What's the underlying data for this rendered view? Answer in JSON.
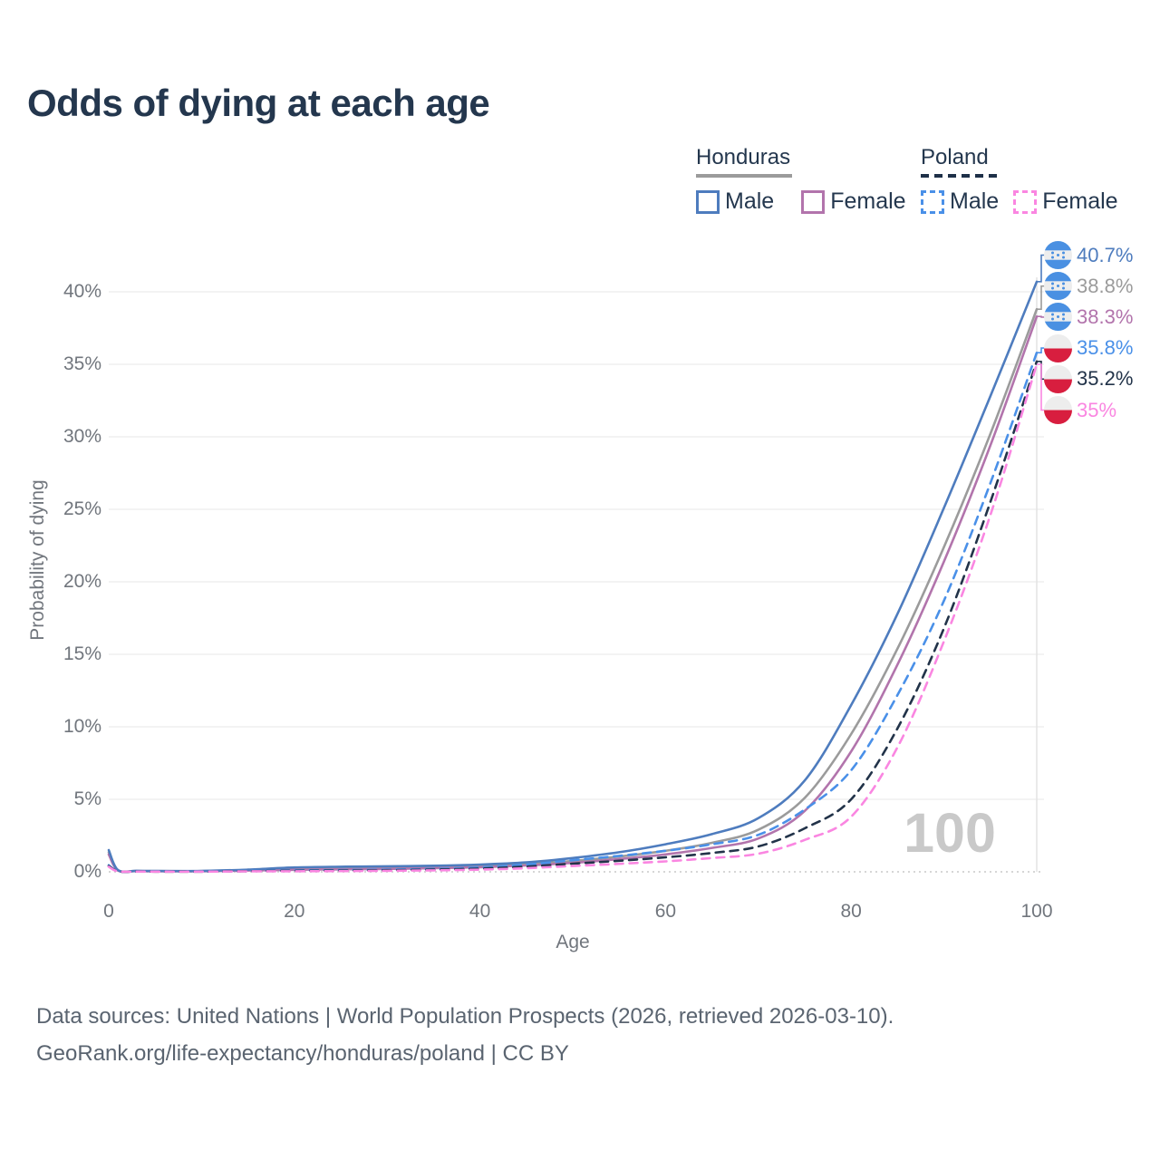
{
  "title": "Odds of dying at each age",
  "legend": {
    "honduras": {
      "label": "Honduras",
      "line_style": "solid",
      "underline_color": "#9b9b9b",
      "male_label": "Male",
      "male_color": "#4e7cbe",
      "female_label": "Female",
      "female_color": "#b274ac"
    },
    "poland": {
      "label": "Poland",
      "line_style": "dashed",
      "underline_color": "#1e3048",
      "male_label": "Male",
      "male_color": "#4a90e8",
      "female_label": "Female",
      "female_color": "#fa86e1"
    }
  },
  "y_axis": {
    "title": "Probability of dying",
    "ticks": [
      "0%",
      "5%",
      "10%",
      "15%",
      "20%",
      "25%",
      "30%",
      "35%",
      "40%"
    ],
    "tick_values": [
      0,
      5,
      10,
      15,
      20,
      25,
      30,
      35,
      40
    ]
  },
  "x_axis": {
    "title": "Age",
    "ticks": [
      "0",
      "20",
      "40",
      "60",
      "80",
      "100"
    ],
    "tick_values": [
      0,
      20,
      40,
      60,
      80,
      100
    ]
  },
  "hover": {
    "age_label": "100"
  },
  "end_labels": [
    {
      "value": "40.7%",
      "color": "#4e7cbe",
      "flag": "honduras",
      "series": "Honduras Male"
    },
    {
      "value": "38.8%",
      "color": "#9b9b9b",
      "flag": "honduras",
      "series": "Honduras Both sexes"
    },
    {
      "value": "38.3%",
      "color": "#b274ac",
      "flag": "honduras",
      "series": "Honduras Female"
    },
    {
      "value": "35.8%",
      "color": "#4a90e8",
      "flag": "poland",
      "series": "Poland Male"
    },
    {
      "value": "35.2%",
      "color": "#223349",
      "flag": "poland",
      "series": "Poland Both sexes"
    },
    {
      "value": "35%",
      "color": "#fa86e1",
      "flag": "poland",
      "series": "Poland Female"
    }
  ],
  "flag_colors": {
    "honduras_blue": "#4a90e2",
    "poland_red": "#d81e3f",
    "flag_white": "#ededed"
  },
  "footer": {
    "line1": "Data sources: United Nations | World Population Prospects (2026, retrieved 2026-03-10).",
    "line2": "GeoRank.org/life-expectancy/honduras/poland | CC BY"
  },
  "chart_data": {
    "type": "line",
    "title": "Odds of dying at each age",
    "xlabel": "Age",
    "ylabel": "Probability of dying",
    "xlim": [
      0,
      100
    ],
    "ylim_pct": [
      0,
      43
    ],
    "grid": "horizontal",
    "legend_position": "top-right",
    "hovered_age": 100,
    "x": [
      0,
      1,
      3,
      5,
      10,
      15,
      20,
      25,
      30,
      35,
      40,
      45,
      50,
      55,
      60,
      65,
      70,
      75,
      80,
      85,
      90,
      95,
      100
    ],
    "series": [
      {
        "name": "Honduras Male",
        "color": "#4e7cbe",
        "dash": "solid",
        "end_label": "40.7%",
        "values_pct": [
          1.5,
          0.12,
          0.07,
          0.06,
          0.06,
          0.15,
          0.3,
          0.35,
          0.38,
          0.42,
          0.5,
          0.65,
          0.95,
          1.35,
          1.9,
          2.6,
          3.7,
          6.3,
          11.5,
          17.8,
          25.1,
          32.8,
          40.7
        ]
      },
      {
        "name": "Honduras Both sexes",
        "color": "#9b9b9b",
        "dash": "solid",
        "end_label": "38.8%",
        "values_pct": [
          1.35,
          0.1,
          0.06,
          0.05,
          0.05,
          0.12,
          0.22,
          0.26,
          0.3,
          0.34,
          0.4,
          0.52,
          0.75,
          1.05,
          1.45,
          2.0,
          2.9,
          5.1,
          9.5,
          15.4,
          22.4,
          30.2,
          38.8
        ]
      },
      {
        "name": "Honduras Female",
        "color": "#b274ac",
        "dash": "solid",
        "end_label": "38.3%",
        "values_pct": [
          1.2,
          0.09,
          0.05,
          0.04,
          0.04,
          0.09,
          0.14,
          0.17,
          0.2,
          0.25,
          0.32,
          0.44,
          0.62,
          0.88,
          1.2,
          1.65,
          2.3,
          4.2,
          8.3,
          14.3,
          21.4,
          29.4,
          38.3
        ]
      },
      {
        "name": "Poland Male",
        "color": "#4a90e8",
        "dash": "dashed",
        "end_label": "35.8%",
        "values_pct": [
          0.45,
          0.04,
          0.02,
          0.02,
          0.02,
          0.06,
          0.1,
          0.12,
          0.15,
          0.2,
          0.3,
          0.5,
          0.8,
          1.1,
          1.45,
          1.9,
          2.55,
          4.3,
          7.0,
          12.2,
          18.7,
          26.8,
          35.8
        ]
      },
      {
        "name": "Poland Both sexes",
        "color": "#223349",
        "dash": "dashed",
        "end_label": "35.2%",
        "values_pct": [
          0.4,
          0.035,
          0.02,
          0.015,
          0.015,
          0.045,
          0.07,
          0.09,
          0.11,
          0.15,
          0.22,
          0.36,
          0.56,
          0.76,
          1.0,
          1.3,
          1.75,
          3.0,
          5.0,
          9.9,
          16.8,
          25.5,
          35.2
        ]
      },
      {
        "name": "Poland Female",
        "color": "#fa86e1",
        "dash": "dashed",
        "end_label": "35%",
        "values_pct": [
          0.35,
          0.03,
          0.015,
          0.01,
          0.01,
          0.03,
          0.04,
          0.05,
          0.07,
          0.1,
          0.15,
          0.25,
          0.4,
          0.55,
          0.72,
          0.95,
          1.25,
          2.2,
          3.8,
          8.6,
          15.9,
          24.6,
          35.0
        ]
      }
    ]
  }
}
